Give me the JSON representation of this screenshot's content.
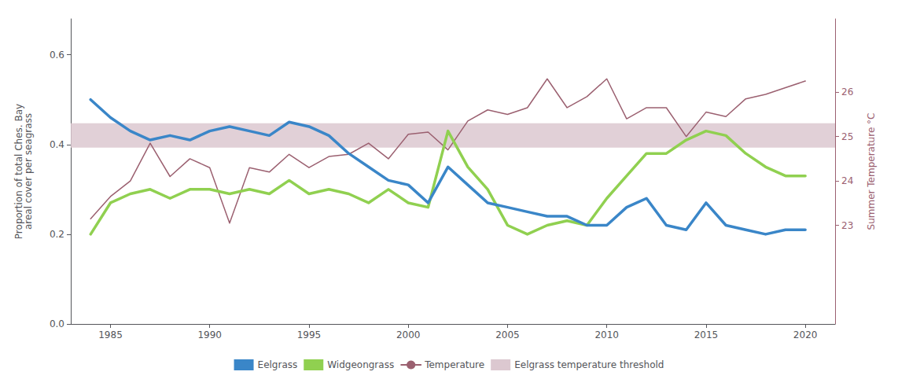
{
  "chart_data": {
    "type": "line",
    "x": [
      1984,
      1985,
      1986,
      1987,
      1988,
      1989,
      1990,
      1991,
      1992,
      1993,
      1994,
      1995,
      1996,
      1997,
      1998,
      1999,
      2000,
      2001,
      2002,
      2003,
      2004,
      2005,
      2006,
      2007,
      2008,
      2009,
      2010,
      2011,
      2012,
      2013,
      2014,
      2015,
      2016,
      2017,
      2018,
      2019,
      2020
    ],
    "series": [
      {
        "name": "Eelgrass",
        "color": "#3a86c8",
        "values": [
          0.5,
          0.46,
          0.43,
          0.41,
          0.42,
          0.41,
          0.43,
          0.44,
          0.43,
          0.42,
          0.45,
          0.44,
          0.42,
          0.38,
          0.35,
          0.32,
          0.31,
          0.27,
          0.35,
          0.31,
          0.27,
          0.26,
          0.25,
          0.24,
          0.24,
          0.22,
          0.22,
          0.26,
          0.28,
          0.22,
          0.21,
          0.27,
          0.22,
          0.21,
          0.2,
          0.21,
          0.21
        ]
      },
      {
        "name": "Widgeongrass",
        "color": "#90d050",
        "values": [
          0.2,
          0.27,
          0.29,
          0.3,
          0.28,
          0.3,
          0.3,
          0.29,
          0.3,
          0.29,
          0.32,
          0.29,
          0.3,
          0.29,
          0.27,
          0.3,
          0.27,
          0.26,
          0.43,
          0.35,
          0.3,
          0.22,
          0.2,
          0.22,
          0.23,
          0.22,
          0.28,
          0.33,
          0.38,
          0.38,
          0.41,
          0.43,
          0.42,
          0.38,
          0.35,
          0.33,
          0.33
        ]
      },
      {
        "name": "Temperature",
        "color": "#9b6070",
        "axis": "y2",
        "values": [
          23.15,
          23.65,
          24.0,
          24.85,
          24.1,
          24.5,
          24.3,
          23.05,
          24.3,
          24.2,
          24.6,
          24.3,
          24.55,
          24.6,
          24.85,
          24.5,
          25.05,
          25.1,
          24.7,
          25.35,
          25.6,
          25.5,
          25.65,
          26.3,
          25.65,
          25.9,
          26.3,
          25.4,
          25.65,
          25.65,
          25.0,
          25.55,
          25.45,
          25.85,
          25.95,
          26.1,
          26.25
        ]
      }
    ],
    "bands": [
      {
        "name": "Eelgrass temperature threshold",
        "color": "#dcc8d0",
        "axis": "y2",
        "low": 24.75,
        "high": 25.3
      }
    ],
    "ylabel": "Proportion of total Ches. Bay\nareal cover per seagrass",
    "y2label": "Summer Temperature °C",
    "xlim": [
      1983.0,
      2021.5
    ],
    "xticks": [
      1985,
      1990,
      1995,
      2000,
      2005,
      2010,
      2015,
      2020
    ],
    "ylim": [
      0.0,
      0.68
    ],
    "yticks": [
      {
        "value": 0,
        "label": "0.0"
      },
      0.2,
      0.4,
      0.6
    ],
    "y2lim": [
      20.78,
      27.65
    ],
    "y2ticks": [
      23,
      24,
      25,
      26
    ],
    "grid": false,
    "legend": "bottom"
  }
}
